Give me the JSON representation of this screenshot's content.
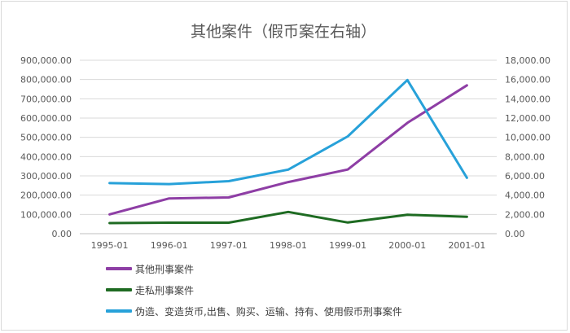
{
  "chart_data": {
    "type": "line",
    "title": "其他案件（假币案在右轴）",
    "categories": [
      "1995-01",
      "1996-01",
      "1997-01",
      "1998-01",
      "1999-01",
      "2000-01",
      "2001-01"
    ],
    "y_left": {
      "ylim": [
        0,
        900000
      ],
      "ticks": [
        "0.00",
        "100,000.00",
        "200,000.00",
        "300,000.00",
        "400,000.00",
        "500,000.00",
        "600,000.00",
        "700,000.00",
        "800,000.00",
        "900,000.00"
      ]
    },
    "y_right": {
      "ylim": [
        0,
        18000
      ],
      "ticks": [
        "0.00",
        "2,000.00",
        "4,000.00",
        "6,000.00",
        "8,000.00",
        "10,000.00",
        "12,000.00",
        "14,000.00",
        "16,000.00",
        "18,000.00"
      ]
    },
    "grid": true,
    "legend_position": "bottom-left",
    "series": [
      {
        "name": "其他刑事案件",
        "axis": "left",
        "color": "#8e3ea5",
        "values": [
          100000,
          183000,
          188000,
          268000,
          333000,
          575000,
          770000
        ]
      },
      {
        "name": "走私刑事案件",
        "axis": "left",
        "color": "#1e6b22",
        "values": [
          55000,
          57000,
          57000,
          113000,
          58000,
          98000,
          88000
        ]
      },
      {
        "name": "伪造、变造货币,出售、购买、运输、持有、使用假币刑事案件",
        "axis": "right",
        "color": "#27a1d9",
        "values": [
          5250,
          5150,
          5450,
          6650,
          10100,
          15950,
          5800
        ]
      }
    ]
  }
}
